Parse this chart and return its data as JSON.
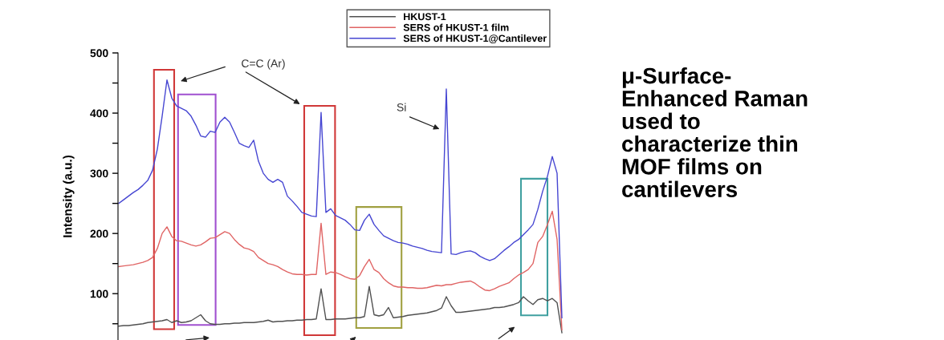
{
  "chart_data": {
    "type": "line",
    "title": "μ-Surface-\nEnhanced Raman\nused to\ncharacterize thin\nMOF films on\ncantilevers",
    "ylabel": "Intensity (a.u.)",
    "categories": [
      null,
      null,
      null,
      null,
      null,
      null,
      null,
      null,
      null,
      null,
      null,
      null,
      null,
      null,
      null,
      null,
      null,
      null,
      null,
      null,
      null,
      null,
      null,
      null,
      null,
      null,
      null,
      null,
      null,
      null,
      null,
      null,
      null,
      null,
      null,
      null,
      null,
      null,
      null,
      null,
      null,
      null,
      null,
      null,
      null,
      null,
      null,
      null,
      null,
      null,
      null,
      null,
      null,
      null,
      null,
      null,
      null,
      null,
      null,
      null,
      null,
      null,
      null,
      null,
      null,
      null,
      null,
      null,
      null,
      null,
      null,
      null,
      null,
      null,
      null,
      null,
      null,
      null,
      null,
      null,
      null,
      null,
      null,
      null,
      null,
      null,
      null,
      null,
      null,
      null,
      null,
      null,
      null
    ],
    "series": [
      {
        "name": "HKUST-1",
        "color": "#505050",
        "values": [
          46,
          47,
          47,
          48,
          49,
          50,
          52,
          53,
          54,
          55,
          57,
          52,
          55,
          52,
          53,
          55,
          60,
          65,
          55,
          50,
          49,
          49,
          50,
          50,
          51,
          51,
          52,
          52,
          52,
          53,
          54,
          56,
          53,
          54,
          54,
          55,
          55,
          56,
          56,
          57,
          57,
          58,
          108,
          57,
          57,
          58,
          58,
          58,
          59,
          60,
          60,
          62,
          112,
          65,
          63,
          65,
          77,
          60,
          61,
          62,
          64,
          65,
          66,
          67,
          68,
          70,
          72,
          76,
          95,
          80,
          69,
          69,
          70,
          71,
          72,
          73,
          74,
          75,
          77,
          77,
          78,
          80,
          82,
          85,
          95,
          88,
          82,
          90,
          92,
          88,
          92,
          85,
          35
        ]
      },
      {
        "name": "SERS of HKUST-1 film",
        "color": "#e06464",
        "values": [
          145,
          146,
          147,
          148,
          150,
          152,
          155,
          160,
          175,
          200,
          211,
          195,
          188,
          187,
          184,
          181,
          179,
          181,
          186,
          192,
          193,
          198,
          203,
          200,
          190,
          182,
          176,
          174,
          170,
          160,
          155,
          150,
          148,
          145,
          140,
          136,
          133,
          132,
          132,
          131,
          132,
          132,
          217,
          132,
          136,
          135,
          132,
          128,
          125,
          124,
          130,
          145,
          157,
          140,
          135,
          125,
          118,
          113,
          111,
          111,
          110,
          110,
          109,
          109,
          110,
          112,
          114,
          113,
          115,
          115,
          117,
          119,
          120,
          121,
          117,
          111,
          106,
          105,
          108,
          112,
          115,
          118,
          125,
          131,
          135,
          140,
          150,
          185,
          195,
          215,
          237,
          190,
          40
        ]
      },
      {
        "name": "SERS of HKUST-1@Cantilever",
        "color": "#4646d2",
        "values": [
          250,
          256,
          262,
          268,
          273,
          280,
          288,
          305,
          340,
          395,
          455,
          425,
          412,
          408,
          404,
          395,
          380,
          362,
          360,
          370,
          368,
          385,
          393,
          385,
          368,
          350,
          346,
          343,
          355,
          320,
          300,
          290,
          285,
          290,
          285,
          262,
          254,
          245,
          235,
          232,
          229,
          228,
          401,
          235,
          241,
          230,
          226,
          222,
          215,
          206,
          205,
          222,
          232,
          215,
          205,
          196,
          192,
          188,
          185,
          184,
          182,
          179,
          177,
          175,
          172,
          170,
          169,
          168,
          440,
          166,
          165,
          168,
          170,
          171,
          168,
          162,
          158,
          155,
          158,
          165,
          172,
          178,
          185,
          190,
          198,
          206,
          215,
          240,
          270,
          295,
          328,
          300,
          60
        ]
      }
    ],
    "ylim": [
      23,
      500
    ],
    "yticks": [
      {
        "value": 50,
        "label": null
      },
      100,
      {
        "value": 150,
        "label": null
      },
      200,
      {
        "value": 250,
        "label": null
      },
      300,
      {
        "value": 350,
        "label": null
      },
      400,
      {
        "value": 450,
        "label": null
      },
      500
    ],
    "annotations": [
      "C=C (Ar)",
      "Si"
    ],
    "legend": "top",
    "grid": false
  }
}
